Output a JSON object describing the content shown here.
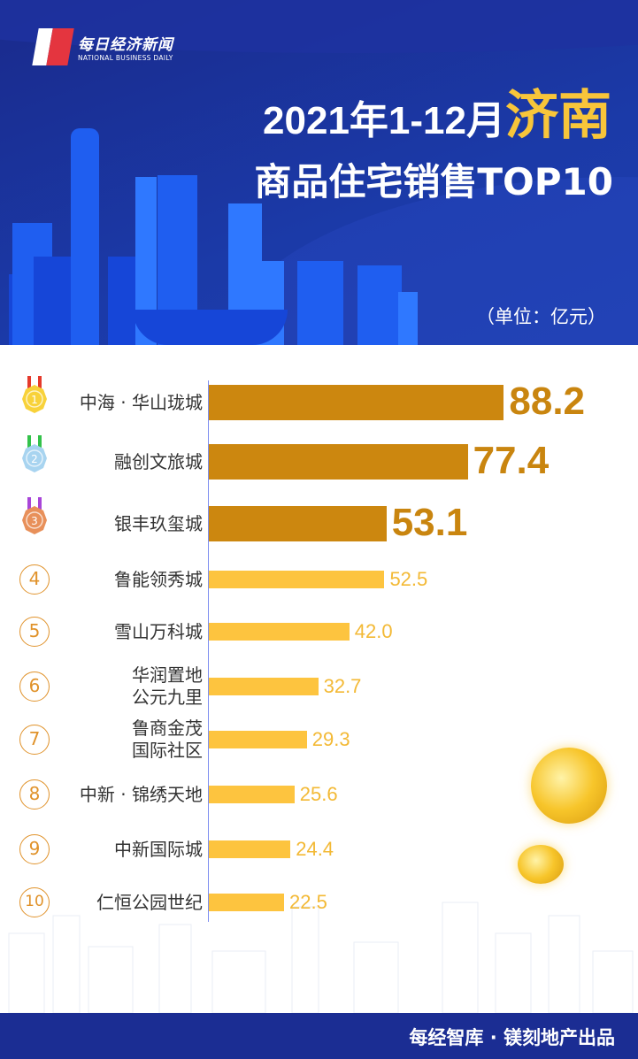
{
  "header": {
    "logo_cn": "每日经济新闻",
    "logo_en": "NATIONAL BUSINESS DAILY",
    "title_line1_prefix": "2021年1-12月",
    "title_city": "济南",
    "title_line2": "商品住宅销售TOP10",
    "unit": "（单位：亿元）"
  },
  "colors": {
    "top3_bar": "#cc870f",
    "other_bar": "#fdc43f",
    "top3_value": "#c9850f",
    "other_value": "#f3b935",
    "header_bg": "#1b3aa8",
    "title_accent": "#f8c53a",
    "footer_bg": "#1b2d93"
  },
  "chart_data": {
    "type": "bar",
    "orientation": "horizontal",
    "title": "2021年1-12月济南商品住宅销售TOP10",
    "unit": "亿元",
    "categories": [
      "中海 · 华山珑城",
      "融创文旅城",
      "银丰玖玺城",
      "鲁能领秀城",
      "雪山万科城",
      "华润置地\n公元九里",
      "鲁商金茂\n国际社区",
      "中新 · 锦绣天地",
      "中新国际城",
      "仁恒公园世纪"
    ],
    "values": [
      88.2,
      77.4,
      53.1,
      52.5,
      42.0,
      32.7,
      29.3,
      25.6,
      24.4,
      22.5
    ],
    "value_labels": [
      "88.2",
      "77.4",
      "53.1",
      "52.5",
      "42.0",
      "32.7",
      "29.3",
      "25.6",
      "24.4",
      "22.5"
    ],
    "ranks": [
      "1",
      "2",
      "3",
      "4",
      "5",
      "6",
      "7",
      "8",
      "9",
      "10"
    ],
    "rank_icons": [
      "gold-medal-icon",
      "silver-medal-icon",
      "bronze-medal-icon",
      "circle-4",
      "circle-5",
      "circle-6",
      "circle-7",
      "circle-8",
      "circle-9",
      "circle-10"
    ],
    "grid": false,
    "legend": "none"
  },
  "footer": {
    "credit": "每经智库 · 镁刻地产出品"
  }
}
